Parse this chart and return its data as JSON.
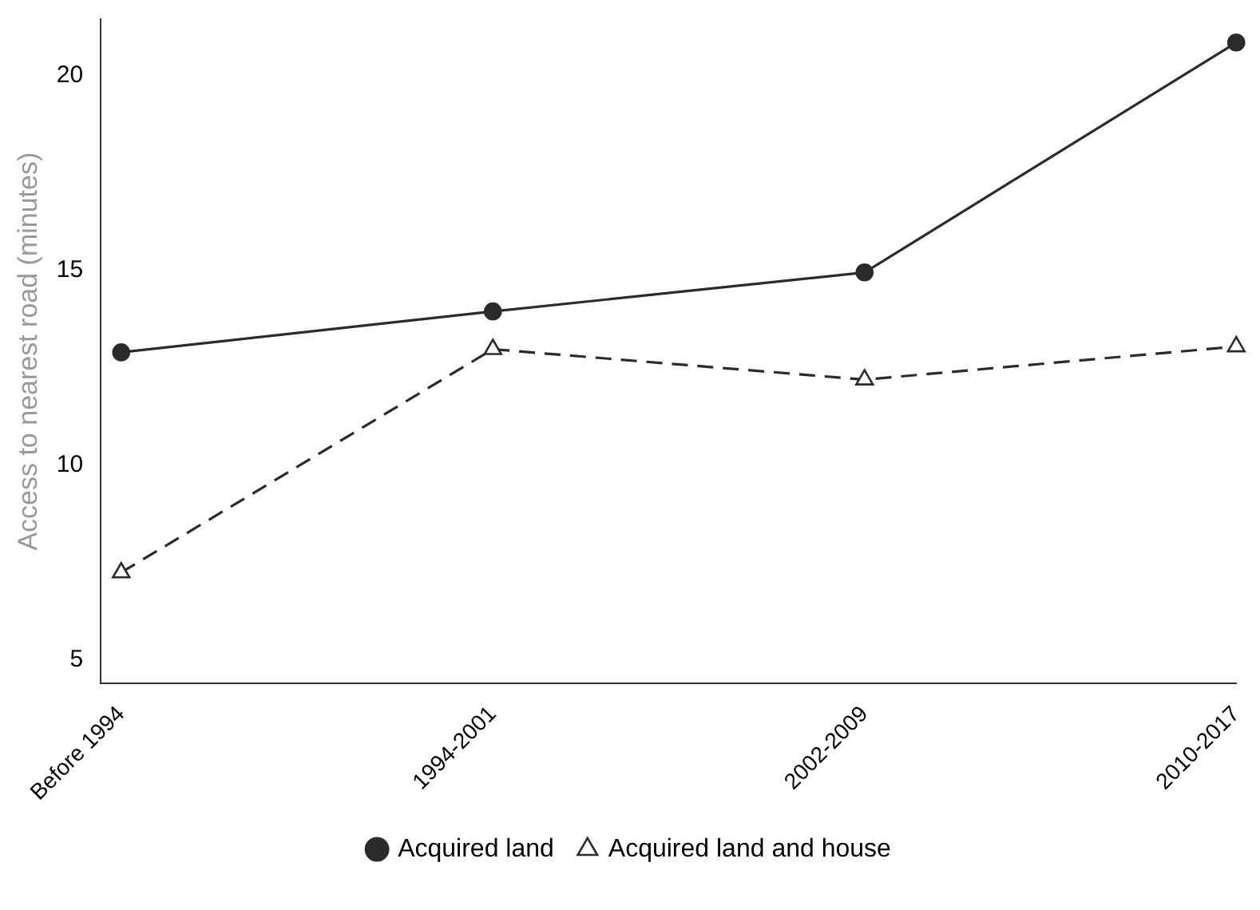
{
  "chart_data": {
    "type": "line",
    "ylabel": "Access to nearest road (minutes)",
    "categories": [
      "Before 1994",
      "1994-2001",
      "2002-2009",
      "2010-2017"
    ],
    "series": [
      {
        "name": "Acquired land",
        "color": "#2b2b2b",
        "values": [
          12.9,
          13.95,
          14.95,
          20.85
        ],
        "marker": "circle",
        "line_style": "solid"
      },
      {
        "name": "Acquired land and house",
        "color": "#2b2b2b",
        "values": [
          7.25,
          12.98,
          12.2,
          13.05
        ],
        "marker": "triangle",
        "line_style": "dashed"
      }
    ],
    "ylim": [
      4.4,
      21.45
    ],
    "yticks": [
      5,
      10,
      15,
      20
    ],
    "grid": false,
    "legend": "bottom"
  }
}
